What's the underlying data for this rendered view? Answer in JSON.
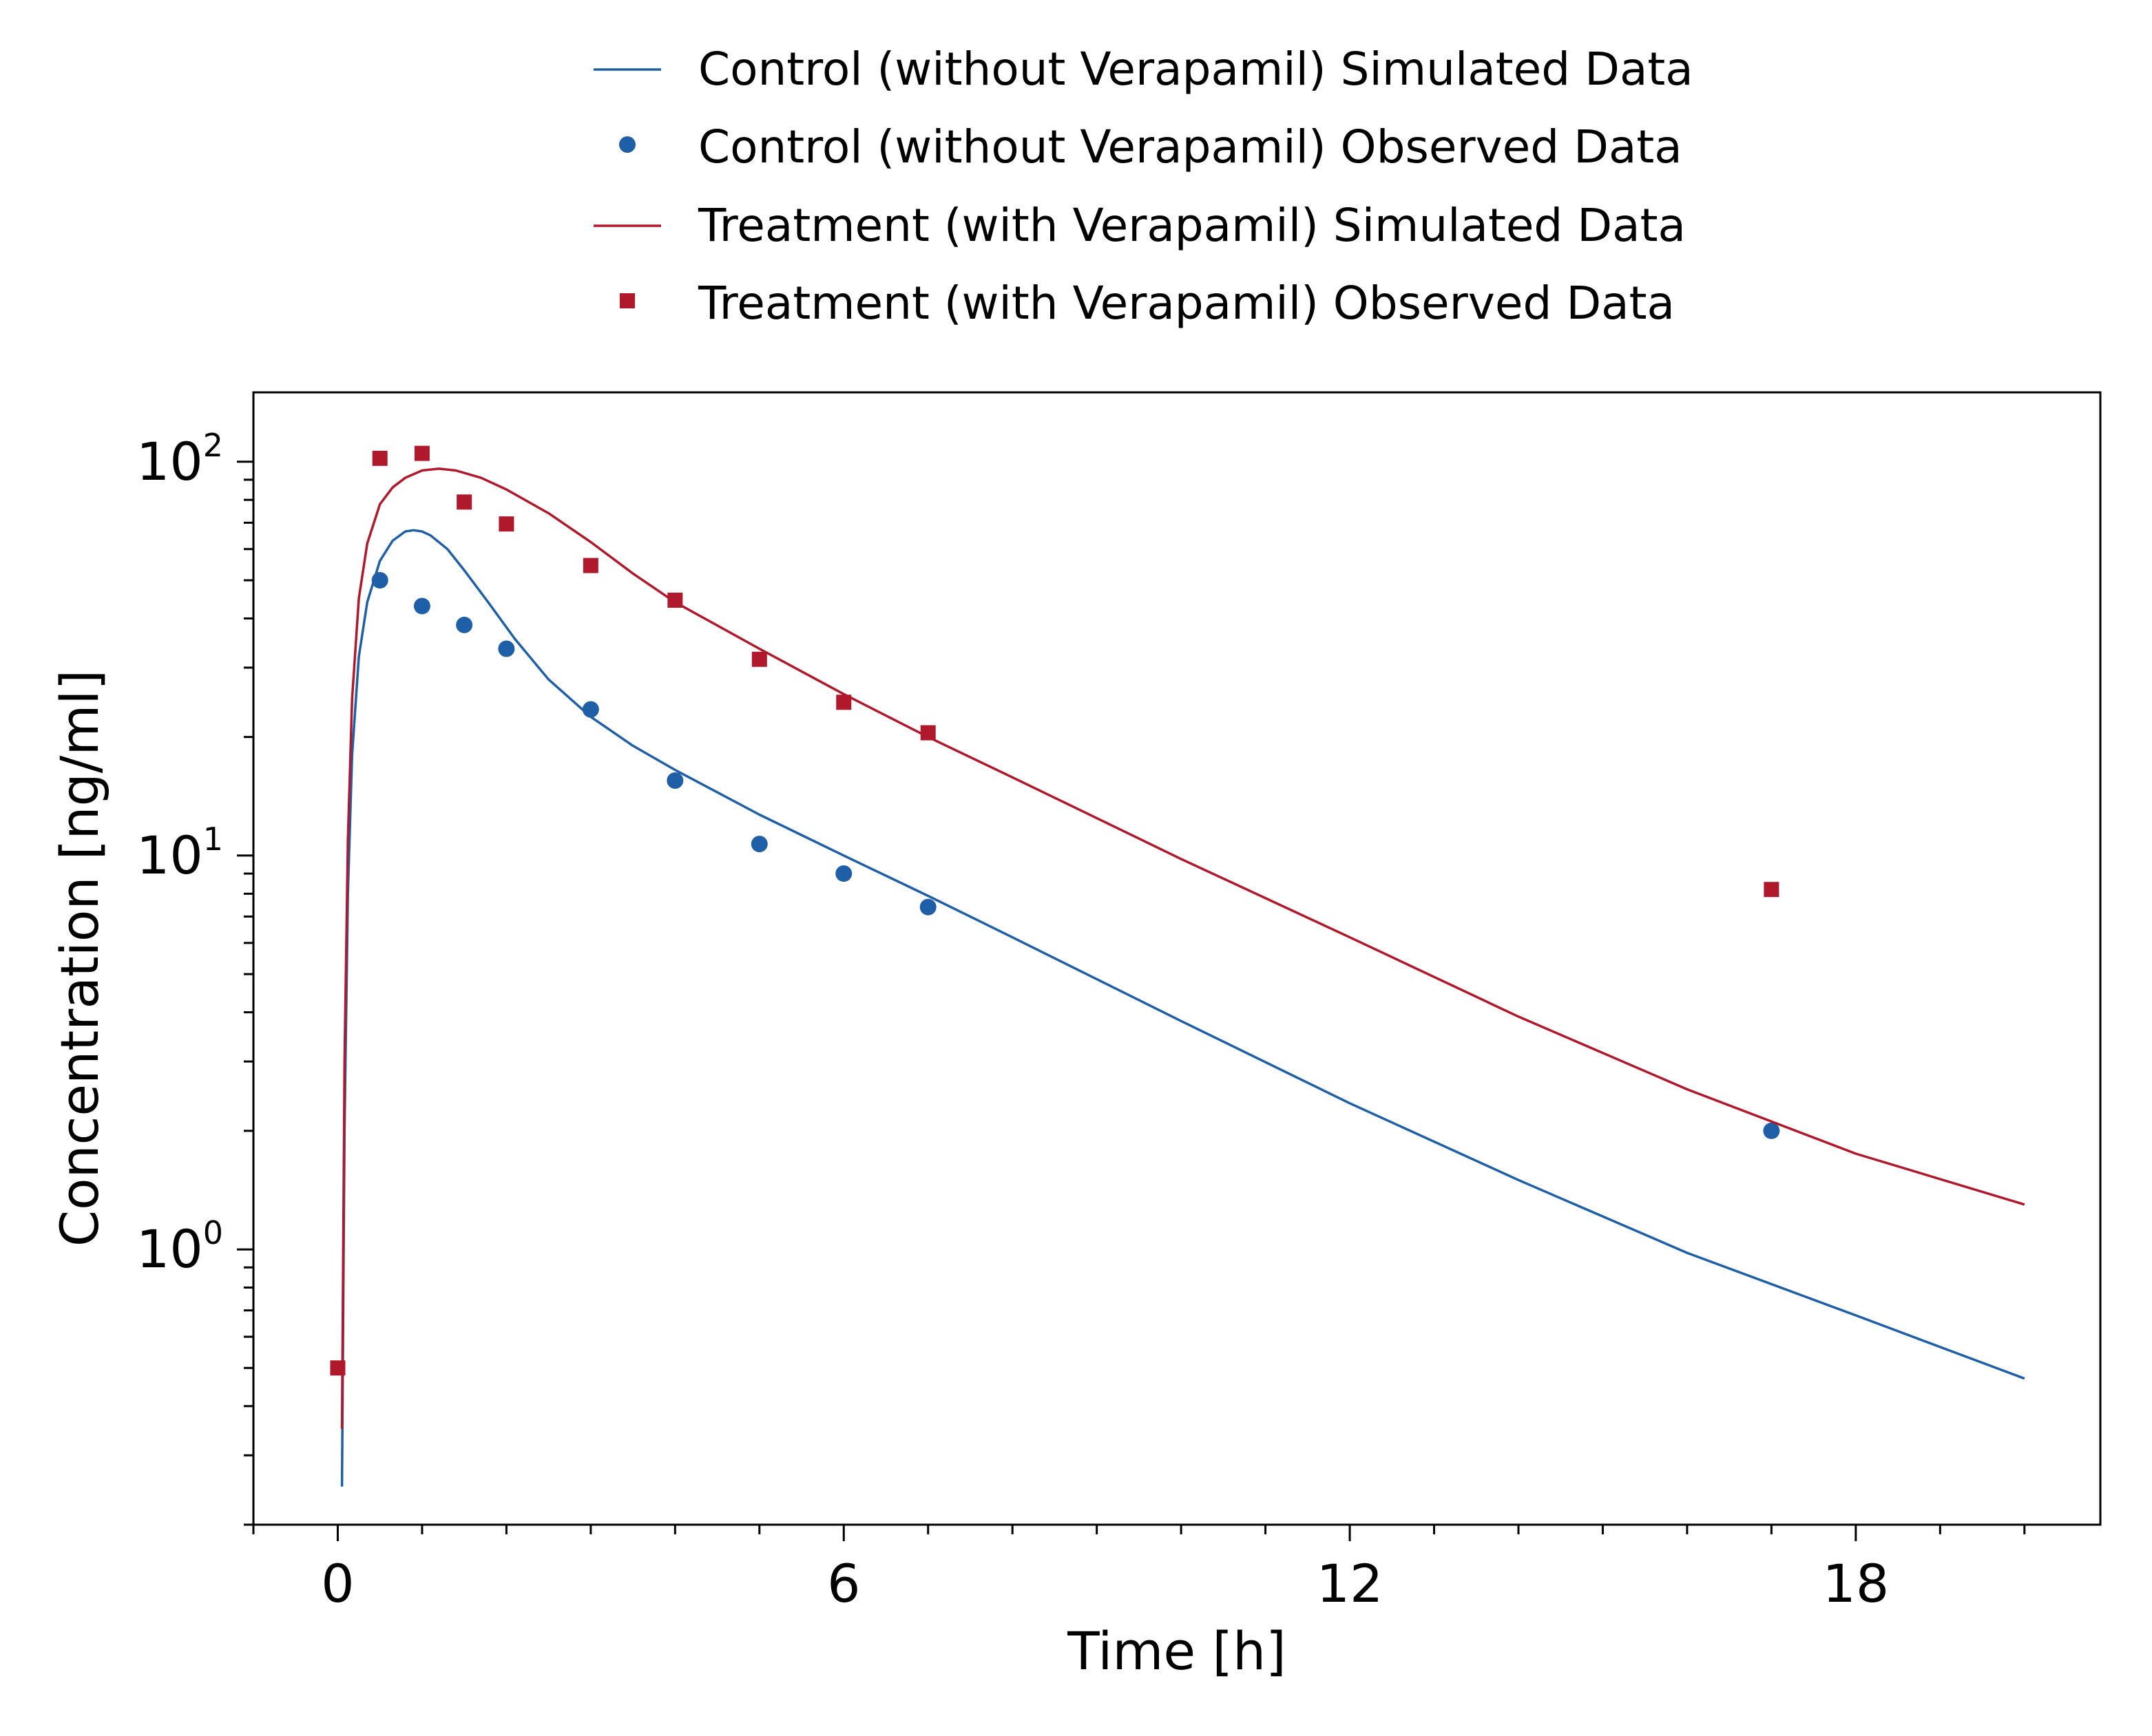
{
  "chart_data": {
    "type": "line",
    "xlabel": "Time [h]",
    "ylabel": "Concentration [ng/ml]",
    "xlim": [
      -1,
      20.9
    ],
    "ylim": [
      0.2,
      150
    ],
    "yscale": "log",
    "xticks": [
      0,
      6,
      12,
      18
    ],
    "x_minor_step": 1,
    "yticks": [
      {
        "base": "10",
        "exp": "0",
        "value": 1
      },
      {
        "base": "10",
        "exp": "1",
        "value": 10
      },
      {
        "base": "10",
        "exp": "2",
        "value": 100
      }
    ],
    "grid": false,
    "legend_position": "top-center, outside plot",
    "series": [
      {
        "name": "Control (without Verapamil) Simulated Data",
        "kind": "line",
        "color": "#1f5fa8",
        "x": [
          0.05,
          0.08,
          0.12,
          0.17,
          0.25,
          0.35,
          0.5,
          0.65,
          0.8,
          0.9,
          1.0,
          1.1,
          1.3,
          1.5,
          1.8,
          2.1,
          2.5,
          3.0,
          3.5,
          4.0,
          5.0,
          6.0,
          7.0,
          8.0,
          10.0,
          12.0,
          14.0,
          16.0,
          18.0,
          20.0
        ],
        "y": [
          0.25,
          2.0,
          8.0,
          18.0,
          32.0,
          44.0,
          56.0,
          63.0,
          66.5,
          67.0,
          66.5,
          65.0,
          60.0,
          53.0,
          43.5,
          35.5,
          28.0,
          22.5,
          19.0,
          16.5,
          12.7,
          10.0,
          7.9,
          6.2,
          3.8,
          2.35,
          1.5,
          0.98,
          0.68,
          0.47
        ]
      },
      {
        "name": "Control (without Verapamil) Observed Data",
        "kind": "scatter",
        "marker": "circle",
        "color": "#1f5fa8",
        "x": [
          0.5,
          1.0,
          1.5,
          2.0,
          3.0,
          4.0,
          5.0,
          6.0,
          7.0,
          17.0
        ],
        "y": [
          50.0,
          43.0,
          38.5,
          33.5,
          23.5,
          15.5,
          10.7,
          9.0,
          7.4,
          2.0
        ]
      },
      {
        "name": "Treatment (with Verapamil) Simulated Data",
        "kind": "line",
        "color": "#b0182c",
        "x": [
          0.05,
          0.08,
          0.12,
          0.17,
          0.25,
          0.35,
          0.5,
          0.65,
          0.8,
          1.0,
          1.2,
          1.4,
          1.7,
          2.0,
          2.5,
          3.0,
          3.5,
          4.0,
          5.0,
          6.0,
          7.0,
          8.0,
          10.0,
          12.0,
          14.0,
          16.0,
          18.0,
          20.0
        ],
        "y": [
          0.35,
          3.0,
          11.0,
          25.0,
          45.0,
          62.0,
          78.0,
          86.0,
          91.0,
          95.0,
          96.0,
          95.0,
          91.0,
          85.0,
          74.0,
          62.5,
          52.0,
          44.0,
          33.5,
          25.7,
          20.0,
          15.8,
          9.8,
          6.2,
          3.9,
          2.55,
          1.75,
          1.3
        ]
      },
      {
        "name": "Treatment (with Verapamil) Observed Data",
        "kind": "scatter",
        "marker": "square",
        "color": "#b0182c",
        "x": [
          0.0,
          0.5,
          1.0,
          1.5,
          2.0,
          3.0,
          4.0,
          5.0,
          6.0,
          7.0,
          17.0
        ],
        "y": [
          0.5,
          102.0,
          105.0,
          79.0,
          69.5,
          54.5,
          44.5,
          31.5,
          24.5,
          20.5,
          8.2
        ]
      }
    ]
  }
}
